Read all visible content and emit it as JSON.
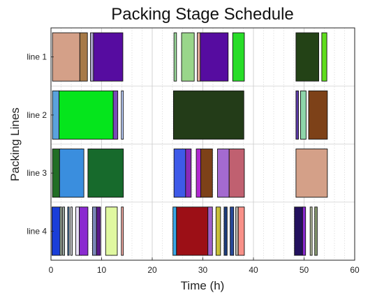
{
  "chart_data": {
    "type": "gantt",
    "title": "Packing Stage Schedule",
    "xlabel": "Time (h)",
    "ylabel": "Packing Lines",
    "xlim": [
      0,
      60
    ],
    "xticks": [
      "0",
      "10",
      "20",
      "30",
      "40",
      "50",
      "60"
    ],
    "xticks_values": [
      0,
      10,
      20,
      30,
      40,
      50,
      60
    ],
    "minor_grid_step": 2,
    "grid": true,
    "lines": [
      "line 1",
      "line 2",
      "line 3",
      "line 4"
    ],
    "tasks": [
      {
        "line": "line 1",
        "start": 0.3,
        "end": 5.7,
        "color": "#d4a088"
      },
      {
        "line": "line 1",
        "start": 5.7,
        "end": 7.2,
        "color": "#a77a47"
      },
      {
        "line": "line 1",
        "start": 7.8,
        "end": 8.4,
        "color": "#a8a0c8"
      },
      {
        "line": "line 1",
        "start": 8.4,
        "end": 14.2,
        "color": "#560ca0"
      },
      {
        "line": "line 1",
        "start": 24.3,
        "end": 24.8,
        "color": "#9cdb9c"
      },
      {
        "line": "line 1",
        "start": 25.8,
        "end": 28.3,
        "color": "#99d68a"
      },
      {
        "line": "line 1",
        "start": 28.9,
        "end": 29.5,
        "color": "#e0a898"
      },
      {
        "line": "line 1",
        "start": 29.5,
        "end": 35.0,
        "color": "#560ca0"
      },
      {
        "line": "line 1",
        "start": 35.9,
        "end": 38.2,
        "color": "#28dd28"
      },
      {
        "line": "line 1",
        "start": 48.4,
        "end": 52.9,
        "color": "#234216"
      },
      {
        "line": "line 1",
        "start": 53.5,
        "end": 54.5,
        "color": "#5fdd1c"
      },
      {
        "line": "line 2",
        "start": 0.3,
        "end": 1.6,
        "color": "#5aa2dc"
      },
      {
        "line": "line 2",
        "start": 1.6,
        "end": 12.3,
        "color": "#05e51c"
      },
      {
        "line": "line 2",
        "start": 12.3,
        "end": 13.2,
        "color": "#7a4ab8"
      },
      {
        "line": "line 2",
        "start": 13.9,
        "end": 14.3,
        "color": "#bcd0ff"
      },
      {
        "line": "line 2",
        "start": 24.2,
        "end": 38.1,
        "color": "#233c18"
      },
      {
        "line": "line 2",
        "start": 48.4,
        "end": 48.9,
        "color": "#5c3aa8"
      },
      {
        "line": "line 2",
        "start": 49.3,
        "end": 50.4,
        "color": "#8ed6aa"
      },
      {
        "line": "line 2",
        "start": 50.9,
        "end": 54.6,
        "color": "#7d4118"
      },
      {
        "line": "line 3",
        "start": 0.3,
        "end": 1.7,
        "color": "#226e26"
      },
      {
        "line": "line 3",
        "start": 1.7,
        "end": 6.5,
        "color": "#3a8ede"
      },
      {
        "line": "line 3",
        "start": 7.3,
        "end": 14.3,
        "color": "#176a2c"
      },
      {
        "line": "line 3",
        "start": 24.3,
        "end": 26.6,
        "color": "#3e5ae8"
      },
      {
        "line": "line 3",
        "start": 26.6,
        "end": 27.7,
        "color": "#8a2ab8"
      },
      {
        "line": "line 3",
        "start": 28.7,
        "end": 29.6,
        "color": "#b02ad0"
      },
      {
        "line": "line 3",
        "start": 29.6,
        "end": 31.9,
        "color": "#7d4118"
      },
      {
        "line": "line 3",
        "start": 32.9,
        "end": 35.2,
        "color": "#a46ad0"
      },
      {
        "line": "line 3",
        "start": 35.2,
        "end": 38.2,
        "color": "#c06070"
      },
      {
        "line": "line 3",
        "start": 48.4,
        "end": 54.6,
        "color": "#d4a088"
      },
      {
        "line": "line 4",
        "start": 0.2,
        "end": 1.8,
        "color": "#1a3ed8"
      },
      {
        "line": "line 4",
        "start": 1.8,
        "end": 2.1,
        "color": "#c8e0c0"
      },
      {
        "line": "line 4",
        "start": 2.3,
        "end": 2.7,
        "color": "#a0b0a8"
      },
      {
        "line": "line 4",
        "start": 3.3,
        "end": 3.6,
        "color": "#4a7aa8"
      },
      {
        "line": "line 4",
        "start": 3.9,
        "end": 4.2,
        "color": "#e8e8f0"
      },
      {
        "line": "line 4",
        "start": 4.9,
        "end": 5.6,
        "color": "#e8e0f8"
      },
      {
        "line": "line 4",
        "start": 5.6,
        "end": 7.3,
        "color": "#8a2ad0"
      },
      {
        "line": "line 4",
        "start": 8.2,
        "end": 9.0,
        "color": "#7a88b8"
      },
      {
        "line": "line 4",
        "start": 9.0,
        "end": 9.8,
        "color": "#5a1a8a"
      },
      {
        "line": "line 4",
        "start": 10.8,
        "end": 13.1,
        "color": "#e0f8a0"
      },
      {
        "line": "line 4",
        "start": 13.9,
        "end": 14.3,
        "color": "#f0a8a0"
      },
      {
        "line": "line 4",
        "start": 24.1,
        "end": 24.8,
        "color": "#3aa8e8"
      },
      {
        "line": "line 4",
        "start": 24.8,
        "end": 31.0,
        "color": "#9c0f16"
      },
      {
        "line": "line 4",
        "start": 31.0,
        "end": 31.9,
        "color": "#a060c8"
      },
      {
        "line": "line 4",
        "start": 32.6,
        "end": 33.5,
        "color": "#c8c03a"
      },
      {
        "line": "line 4",
        "start": 34.2,
        "end": 34.8,
        "color": "#1c3c7c"
      },
      {
        "line": "line 4",
        "start": 35.4,
        "end": 36.1,
        "color": "#2a4a9a"
      },
      {
        "line": "line 4",
        "start": 36.5,
        "end": 37.0,
        "color": "#b8b8b0"
      },
      {
        "line": "line 4",
        "start": 37.0,
        "end": 38.2,
        "color": "#f89088"
      },
      {
        "line": "line 4",
        "start": 48.1,
        "end": 49.7,
        "color": "#23115e"
      },
      {
        "line": "line 4",
        "start": 49.7,
        "end": 50.3,
        "color": "#8a2ad0"
      },
      {
        "line": "line 4",
        "start": 51.2,
        "end": 51.6,
        "color": "#b8c0a0"
      },
      {
        "line": "line 4",
        "start": 52.1,
        "end": 52.6,
        "color": "#889a70"
      }
    ]
  }
}
